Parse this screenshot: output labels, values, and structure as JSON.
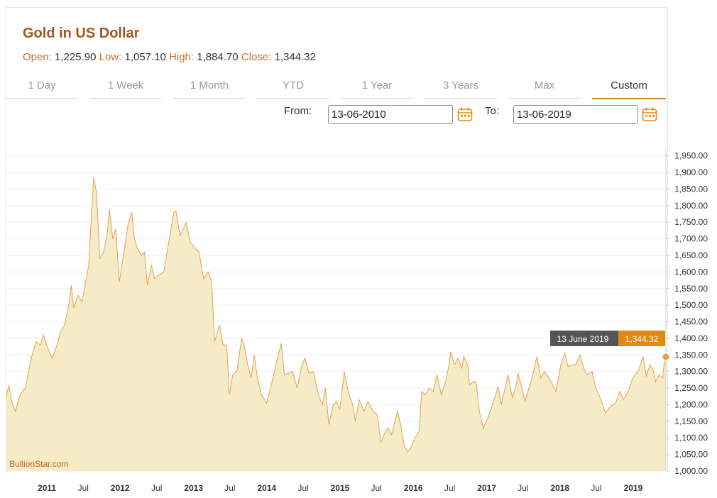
{
  "header": {
    "title": "Gold in US Dollar",
    "open_label": "Open:",
    "open": "1,225.90",
    "low_label": "Low:",
    "low": "1,057.10",
    "high_label": "High:",
    "high": "1,884.70",
    "close_label": "Close:",
    "close": "1,344.32"
  },
  "tabs": [
    {
      "label": "1 Day"
    },
    {
      "label": "1 Week"
    },
    {
      "label": "1 Month"
    },
    {
      "label": "YTD"
    },
    {
      "label": "1 Year"
    },
    {
      "label": "3 Years"
    },
    {
      "label": "Max"
    },
    {
      "label": "Custom",
      "active": true
    }
  ],
  "range": {
    "from_label": "From:",
    "from_value": "13-06-2010",
    "to_label": "To:",
    "to_value": "13-06-2019",
    "calendar_icon": "calendar-icon"
  },
  "colors": {
    "accent": "#c7822e",
    "line": "#e3a24f",
    "fill": "#f5ebc6",
    "tooltip_date_bg": "#555555",
    "tooltip_value_bg": "#e08a12"
  },
  "chart_data": {
    "type": "area",
    "title": "Gold in US Dollar",
    "ylim": [
      1000,
      1975
    ],
    "y_ticks": [
      "1,000.00",
      "1,050.00",
      "1,100.00",
      "1,150.00",
      "1,200.00",
      "1,250.00",
      "1,300.00",
      "1,350.00",
      "1,400.00",
      "1,450.00",
      "1,500.00",
      "1,550.00",
      "1,600.00",
      "1,650.00",
      "1,700.00",
      "1,750.00",
      "1,800.00",
      "1,850.00",
      "1,900.00",
      "1,950.00"
    ],
    "x_ticks": [
      {
        "label": "2011",
        "date": "2011-01-01",
        "year": true
      },
      {
        "label": "Jul",
        "date": "2011-07-01"
      },
      {
        "label": "2012",
        "date": "2012-01-01",
        "year": true
      },
      {
        "label": "Jul",
        "date": "2012-07-01"
      },
      {
        "label": "2013",
        "date": "2013-01-01",
        "year": true
      },
      {
        "label": "Jul",
        "date": "2013-07-01"
      },
      {
        "label": "2014",
        "date": "2014-01-01",
        "year": true
      },
      {
        "label": "Jul",
        "date": "2014-07-01"
      },
      {
        "label": "2015",
        "date": "2015-01-01",
        "year": true
      },
      {
        "label": "Jul",
        "date": "2015-07-01"
      },
      {
        "label": "2016",
        "date": "2016-01-01",
        "year": true
      },
      {
        "label": "Jul",
        "date": "2016-07-01"
      },
      {
        "label": "2017",
        "date": "2017-01-01",
        "year": true
      },
      {
        "label": "Jul",
        "date": "2017-07-01"
      },
      {
        "label": "2018",
        "date": "2018-01-01",
        "year": true
      },
      {
        "label": "Jul",
        "date": "2018-07-01"
      },
      {
        "label": "2019",
        "date": "2019-01-01",
        "year": true
      }
    ],
    "x_range": [
      "2010-06-13",
      "2019-06-13"
    ],
    "series": [
      {
        "points": [
          [
            "2010-06-13",
            1226
          ],
          [
            "2010-06-25",
            1258
          ],
          [
            "2010-07-10",
            1210
          ],
          [
            "2010-07-28",
            1180
          ],
          [
            "2010-08-20",
            1230
          ],
          [
            "2010-09-15",
            1250
          ],
          [
            "2010-10-15",
            1340
          ],
          [
            "2010-11-08",
            1390
          ],
          [
            "2010-11-30",
            1380
          ],
          [
            "2010-12-15",
            1410
          ],
          [
            "2011-01-05",
            1370
          ],
          [
            "2011-01-28",
            1340
          ],
          [
            "2011-02-20",
            1380
          ],
          [
            "2011-03-10",
            1420
          ],
          [
            "2011-03-30",
            1440
          ],
          [
            "2011-04-20",
            1500
          ],
          [
            "2011-05-02",
            1560
          ],
          [
            "2011-05-15",
            1490
          ],
          [
            "2011-06-05",
            1530
          ],
          [
            "2011-06-25",
            1510
          ],
          [
            "2011-07-10",
            1560
          ],
          [
            "2011-07-28",
            1620
          ],
          [
            "2011-08-10",
            1760
          ],
          [
            "2011-08-22",
            1884
          ],
          [
            "2011-09-05",
            1840
          ],
          [
            "2011-09-22",
            1640
          ],
          [
            "2011-10-10",
            1660
          ],
          [
            "2011-10-30",
            1720
          ],
          [
            "2011-11-08",
            1790
          ],
          [
            "2011-11-25",
            1700
          ],
          [
            "2011-12-10",
            1730
          ],
          [
            "2011-12-28",
            1570
          ],
          [
            "2012-01-20",
            1660
          ],
          [
            "2012-02-08",
            1740
          ],
          [
            "2012-02-28",
            1780
          ],
          [
            "2012-03-12",
            1700
          ],
          [
            "2012-03-28",
            1670
          ],
          [
            "2012-04-15",
            1650
          ],
          [
            "2012-05-01",
            1660
          ],
          [
            "2012-05-16",
            1560
          ],
          [
            "2012-06-05",
            1620
          ],
          [
            "2012-06-20",
            1580
          ],
          [
            "2012-07-10",
            1590
          ],
          [
            "2012-08-05",
            1600
          ],
          [
            "2012-08-25",
            1670
          ],
          [
            "2012-09-10",
            1730
          ],
          [
            "2012-09-25",
            1780
          ],
          [
            "2012-10-05",
            1785
          ],
          [
            "2012-10-25",
            1710
          ],
          [
            "2012-11-10",
            1730
          ],
          [
            "2012-11-26",
            1750
          ],
          [
            "2012-12-15",
            1690
          ],
          [
            "2013-01-10",
            1670
          ],
          [
            "2013-01-28",
            1660
          ],
          [
            "2013-02-20",
            1580
          ],
          [
            "2013-03-15",
            1600
          ],
          [
            "2013-04-01",
            1570
          ],
          [
            "2013-04-16",
            1390
          ],
          [
            "2013-05-10",
            1440
          ],
          [
            "2013-05-28",
            1380
          ],
          [
            "2013-06-15",
            1380
          ],
          [
            "2013-06-28",
            1230
          ],
          [
            "2013-07-15",
            1290
          ],
          [
            "2013-08-05",
            1300
          ],
          [
            "2013-08-28",
            1400
          ],
          [
            "2013-09-10",
            1380
          ],
          [
            "2013-09-28",
            1320
          ],
          [
            "2013-10-15",
            1280
          ],
          [
            "2013-10-30",
            1350
          ],
          [
            "2013-11-15",
            1280
          ],
          [
            "2013-12-05",
            1230
          ],
          [
            "2013-12-31",
            1205
          ],
          [
            "2014-01-20",
            1250
          ],
          [
            "2014-02-15",
            1320
          ],
          [
            "2014-03-14",
            1385
          ],
          [
            "2014-03-30",
            1290
          ],
          [
            "2014-04-20",
            1295
          ],
          [
            "2014-05-10",
            1300
          ],
          [
            "2014-06-01",
            1250
          ],
          [
            "2014-06-25",
            1320
          ],
          [
            "2014-07-10",
            1340
          ],
          [
            "2014-07-30",
            1295
          ],
          [
            "2014-08-20",
            1300
          ],
          [
            "2014-09-15",
            1230
          ],
          [
            "2014-10-05",
            1200
          ],
          [
            "2014-10-20",
            1250
          ],
          [
            "2014-11-06",
            1140
          ],
          [
            "2014-11-28",
            1200
          ],
          [
            "2014-12-15",
            1210
          ],
          [
            "2014-12-31",
            1185
          ],
          [
            "2015-01-22",
            1300
          ],
          [
            "2015-02-10",
            1240
          ],
          [
            "2015-03-05",
            1200
          ],
          [
            "2015-03-18",
            1150
          ],
          [
            "2015-04-06",
            1215
          ],
          [
            "2015-05-01",
            1180
          ],
          [
            "2015-05-20",
            1210
          ],
          [
            "2015-06-15",
            1180
          ],
          [
            "2015-07-05",
            1170
          ],
          [
            "2015-07-24",
            1085
          ],
          [
            "2015-08-15",
            1120
          ],
          [
            "2015-08-28",
            1130
          ],
          [
            "2015-09-15",
            1110
          ],
          [
            "2015-10-14",
            1180
          ],
          [
            "2015-10-30",
            1140
          ],
          [
            "2015-11-18",
            1075
          ],
          [
            "2015-12-03",
            1057
          ],
          [
            "2015-12-20",
            1070
          ],
          [
            "2016-01-10",
            1100
          ],
          [
            "2016-01-30",
            1120
          ],
          [
            "2016-02-12",
            1240
          ],
          [
            "2016-03-01",
            1230
          ],
          [
            "2016-03-20",
            1250
          ],
          [
            "2016-04-10",
            1240
          ],
          [
            "2016-04-28",
            1290
          ],
          [
            "2016-05-20",
            1230
          ],
          [
            "2016-06-10",
            1270
          ],
          [
            "2016-06-27",
            1320
          ],
          [
            "2016-07-06",
            1360
          ],
          [
            "2016-07-25",
            1320
          ],
          [
            "2016-08-10",
            1340
          ],
          [
            "2016-08-30",
            1310
          ],
          [
            "2016-09-08",
            1345
          ],
          [
            "2016-09-28",
            1320
          ],
          [
            "2016-10-07",
            1260
          ],
          [
            "2016-10-28",
            1270
          ],
          [
            "2016-11-09",
            1270
          ],
          [
            "2016-11-25",
            1180
          ],
          [
            "2016-12-15",
            1130
          ],
          [
            "2016-12-31",
            1150
          ],
          [
            "2017-01-25",
            1190
          ],
          [
            "2017-02-27",
            1255
          ],
          [
            "2017-03-15",
            1200
          ],
          [
            "2017-04-17",
            1290
          ],
          [
            "2017-05-09",
            1220
          ],
          [
            "2017-05-30",
            1265
          ],
          [
            "2017-06-06",
            1295
          ],
          [
            "2017-06-30",
            1240
          ],
          [
            "2017-07-10",
            1210
          ],
          [
            "2017-08-10",
            1270
          ],
          [
            "2017-09-08",
            1345
          ],
          [
            "2017-09-28",
            1280
          ],
          [
            "2017-10-16",
            1300
          ],
          [
            "2017-11-08",
            1280
          ],
          [
            "2017-12-12",
            1240
          ],
          [
            "2018-01-05",
            1320
          ],
          [
            "2018-01-25",
            1355
          ],
          [
            "2018-02-10",
            1315
          ],
          [
            "2018-02-28",
            1320
          ],
          [
            "2018-03-20",
            1320
          ],
          [
            "2018-04-11",
            1350
          ],
          [
            "2018-04-30",
            1310
          ],
          [
            "2018-05-15",
            1290
          ],
          [
            "2018-06-10",
            1300
          ],
          [
            "2018-06-28",
            1250
          ],
          [
            "2018-07-18",
            1225
          ],
          [
            "2018-08-16",
            1175
          ],
          [
            "2018-09-10",
            1195
          ],
          [
            "2018-10-05",
            1205
          ],
          [
            "2018-10-26",
            1240
          ],
          [
            "2018-11-15",
            1215
          ],
          [
            "2018-12-10",
            1245
          ],
          [
            "2018-12-31",
            1282
          ],
          [
            "2019-01-25",
            1300
          ],
          [
            "2019-02-20",
            1345
          ],
          [
            "2019-03-07",
            1285
          ],
          [
            "2019-03-25",
            1320
          ],
          [
            "2019-04-10",
            1305
          ],
          [
            "2019-04-23",
            1270
          ],
          [
            "2019-05-10",
            1290
          ],
          [
            "2019-05-28",
            1280
          ],
          [
            "2019-06-05",
            1330
          ],
          [
            "2019-06-13",
            1344.32
          ]
        ]
      }
    ],
    "tooltip": {
      "date": "13 June 2019",
      "value": "1,344.32"
    },
    "watermark": "BullionStar.com",
    "grid": true
  }
}
